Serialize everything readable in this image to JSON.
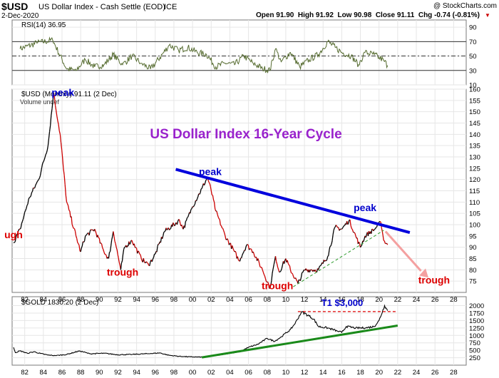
{
  "header": {
    "symbol": "$USD",
    "name": "US Dollar Index - Cash Settle (EOD)",
    "exchange": "ICE",
    "date": "2-Dec-2020",
    "watermark": "@ StockCharts.com",
    "quote": "Open 91.90  High 91.92  Low 90.98  Close 91.11  Chg -0.74 (-0.81%)",
    "down_arrow": "▼"
  },
  "colors": {
    "usd_up": "#000000",
    "usd_down": "#cc0000",
    "trend": "#0000dd",
    "gold_trend": "#1a8a1a",
    "support": "#2a9a2a",
    "projection": "#f4a0a0",
    "annotation_red": "#dd0000",
    "annotation_blue": "#0000cc",
    "title": "#9922cc"
  },
  "panels": {
    "rsi": {
      "label": "RSI(14) 36.95",
      "ticks": [
        10,
        30,
        50,
        70,
        90
      ],
      "overbought": 70,
      "oversold": 30,
      "mid": 50
    },
    "usd": {
      "label": "$USD (Monthly) 91.11 (2 Dec)",
      "sublabel": "Volume undef",
      "ticks": [
        75,
        80,
        85,
        90,
        95,
        100,
        105,
        110,
        115,
        120,
        125,
        130,
        135,
        140,
        145,
        150,
        155,
        160
      ],
      "title": "US Dollar Index 16-Year Cycle",
      "annotations": [
        {
          "text": "peak",
          "color": "blue",
          "x": 1986.1,
          "y": 157
        },
        {
          "text": "peak",
          "color": "blue",
          "x": 2001.9,
          "y": 122
        },
        {
          "text": "peak",
          "color": "blue",
          "x": 2018.5,
          "y": 106
        },
        {
          "text": "ugh",
          "color": "red",
          "x": 1980.8,
          "y": 94
        },
        {
          "text": "trough",
          "color": "red",
          "x": 1992.5,
          "y": 77.5
        },
        {
          "text": "trough",
          "color": "red",
          "x": 2009.1,
          "y": 71.5
        },
        {
          "text": "trough",
          "color": "red",
          "x": 2025.9,
          "y": 74
        }
      ]
    },
    "gold": {
      "label": "$GOLD 1830.20 (2 Dec)",
      "ticks": [
        250,
        500,
        750,
        1000,
        1250,
        1500,
        1750,
        2000
      ],
      "target_label": "T1 $3,000"
    }
  },
  "x_axis": {
    "ticks": [
      "82",
      "84",
      "86",
      "88",
      "90",
      "92",
      "94",
      "96",
      "98",
      "00",
      "02",
      "04",
      "06",
      "08",
      "10",
      "12",
      "14",
      "16",
      "18",
      "20",
      "22",
      "24",
      "26",
      "28"
    ]
  },
  "chart_data": [
    {
      "type": "line",
      "title": "RSI(14)",
      "x": [
        1981.5,
        1983.3,
        1985.0,
        1986.5,
        1987.5,
        1988.5,
        1989.5,
        1990.5,
        1991.5,
        1992.5,
        1993.5,
        1994.5,
        1995.5,
        1996.5,
        1997.5,
        1998.5,
        1999.5,
        2000.5,
        2001.5,
        2002.5,
        2003.5,
        2004.5,
        2005.5,
        2006.5,
        2007.5,
        2008.3,
        2008.9,
        2009.5,
        2010.5,
        2011.5,
        2012.5,
        2013.5,
        2014.5,
        2015.3,
        2016.0,
        2017.0,
        2017.8,
        2018.5,
        2019.5,
        2020.0,
        2020.5,
        2020.92
      ],
      "y": [
        60,
        68,
        72,
        32,
        30,
        45,
        35,
        38,
        52,
        38,
        50,
        40,
        32,
        48,
        65,
        58,
        62,
        55,
        52,
        35,
        40,
        38,
        50,
        40,
        33,
        30,
        60,
        42,
        55,
        35,
        45,
        52,
        70,
        62,
        55,
        50,
        38,
        55,
        52,
        48,
        44,
        36.95
      ],
      "ylim": [
        10,
        100
      ]
    },
    {
      "type": "line",
      "title": "$USD (Monthly)",
      "x": [
        1980.8,
        1981.5,
        1982.5,
        1983.5,
        1984.5,
        1985.1,
        1985.8,
        1986.5,
        1987.5,
        1988.0,
        1988.5,
        1989.5,
        1990.5,
        1991.0,
        1991.5,
        1992.3,
        1992.7,
        1993.5,
        1994.5,
        1995.3,
        1996.0,
        1997.0,
        1998.0,
        1998.6,
        1999.0,
        2000.0,
        2001.0,
        2001.6,
        2002.0,
        2002.5,
        2003.5,
        2004.5,
        2005.0,
        2005.8,
        2006.5,
        2007.5,
        2008.3,
        2008.9,
        2009.3,
        2010.0,
        2010.5,
        2011.3,
        2012.0,
        2012.8,
        2013.5,
        2014.5,
        2015.3,
        2016.0,
        2016.8,
        2017.5,
        2018.0,
        2018.5,
        2019.5,
        2020.2,
        2020.5,
        2020.92
      ],
      "y": [
        92,
        98,
        112,
        120,
        135,
        158,
        140,
        110,
        95,
        88,
        95,
        98,
        88,
        85,
        97,
        80,
        90,
        93,
        85,
        82,
        87,
        97,
        100,
        102,
        98,
        108,
        116,
        121,
        115,
        106,
        95,
        88,
        84,
        91,
        88,
        80,
        72,
        86,
        79,
        85,
        80,
        74,
        80,
        80,
        80,
        86,
        99,
        98,
        102,
        95,
        90,
        95,
        98,
        101,
        93,
        91.11
      ],
      "ylim": [
        70,
        160
      ]
    },
    {
      "type": "line",
      "title": "$GOLD",
      "x": [
        1980.8,
        1981.0,
        1981.5,
        1982.3,
        1983.0,
        1983.7,
        1984.5,
        1985.3,
        1986.5,
        1987.9,
        1989.0,
        1990.5,
        1992.0,
        1993.5,
        1995.5,
        1996.5,
        1997.5,
        1998.5,
        1999.0,
        1999.8,
        2001.0,
        2002.0,
        2003.0,
        2004.0,
        2005.0,
        2006.0,
        2007.0,
        2008.0,
        2008.8,
        2009.5,
        2010.5,
        2011.0,
        2011.7,
        2012.5,
        2013.0,
        2013.5,
        2014.5,
        2015.5,
        2016.0,
        2016.5,
        2017.5,
        2018.5,
        2019.5,
        2020.0,
        2020.6,
        2020.92
      ],
      "y": [
        600,
        420,
        480,
        400,
        450,
        390,
        340,
        320,
        360,
        480,
        380,
        400,
        350,
        360,
        390,
        410,
        330,
        300,
        290,
        280,
        270,
        310,
        350,
        400,
        440,
        600,
        700,
        900,
        800,
        950,
        1200,
        1400,
        1800,
        1650,
        1550,
        1300,
        1250,
        1150,
        1100,
        1300,
        1250,
        1250,
        1300,
        1500,
        2000,
        1830.2
      ],
      "ylim": [
        0,
        2300
      ]
    }
  ]
}
